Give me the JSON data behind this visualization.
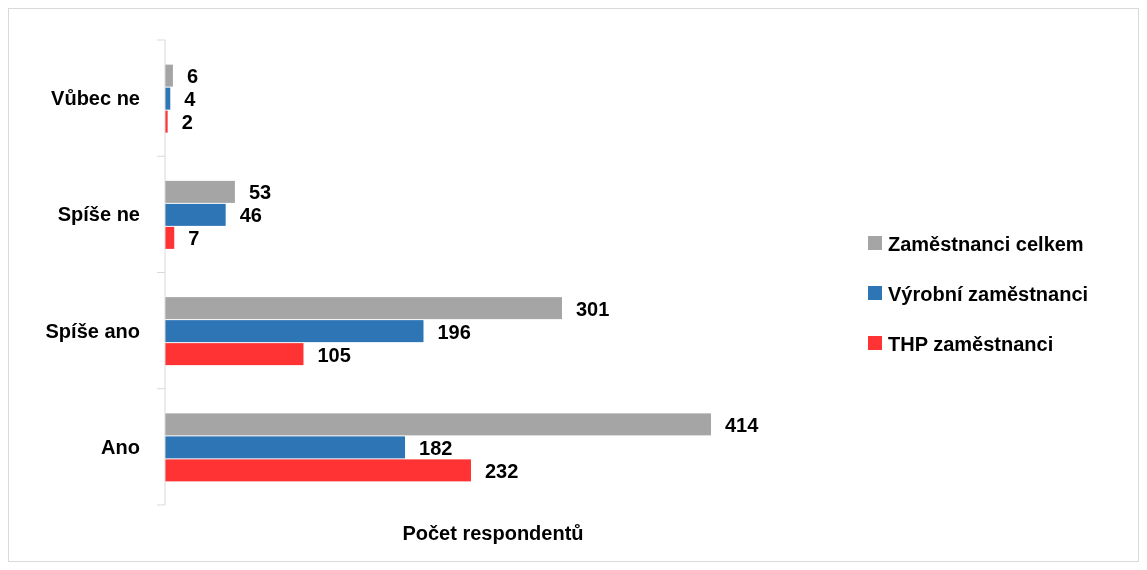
{
  "chart_data": {
    "type": "bar",
    "orientation": "horizontal",
    "xlabel": "Počet respondentů",
    "categories": [
      "Vůbec ne",
      "Spíše ne",
      "Spíše ano",
      "Ano"
    ],
    "series": [
      {
        "name": "Zaměstnanci celkem",
        "color": "#a5a5a5",
        "values": [
          6,
          53,
          301,
          414
        ]
      },
      {
        "name": "Výrobní zaměstnanci",
        "color": "#2e75b6",
        "values": [
          4,
          46,
          196,
          182
        ]
      },
      {
        "name": "THP zaměstnanci",
        "color": "#ff3333",
        "values": [
          2,
          7,
          105,
          232
        ]
      }
    ],
    "data_labels": true,
    "legend": "right"
  }
}
